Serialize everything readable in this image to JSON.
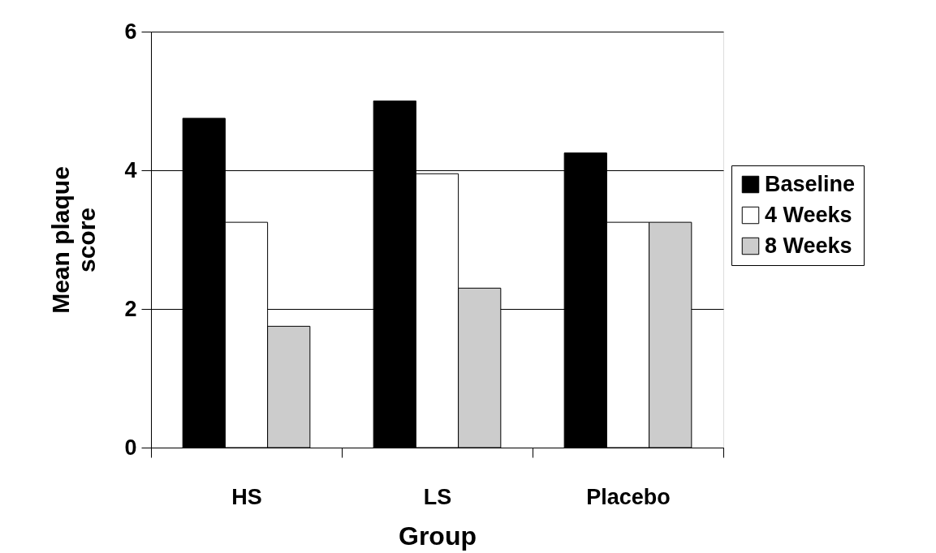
{
  "chart_data": {
    "type": "bar",
    "xlabel": "Group",
    "ylabel": "Mean plaque score",
    "categories": [
      "HS",
      "LS",
      "Placebo"
    ],
    "series": [
      {
        "name": "Baseline",
        "color": "#000000",
        "values": [
          4.75,
          5.0,
          4.25
        ]
      },
      {
        "name": "4 Weeks",
        "color": "#ffffff",
        "values": [
          3.25,
          3.95,
          3.25
        ]
      },
      {
        "name": "8 Weeks",
        "color": "#cccccc",
        "values": [
          1.75,
          2.3,
          3.25
        ]
      }
    ],
    "ylim": [
      0,
      6
    ],
    "yticks": [
      0,
      2,
      4,
      6
    ],
    "grid": "y",
    "legend": "right"
  }
}
